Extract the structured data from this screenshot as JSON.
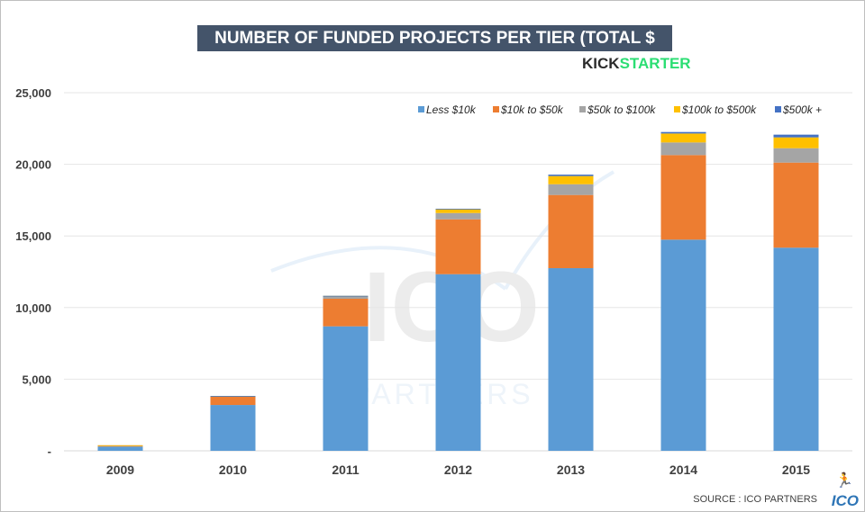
{
  "chart_data": {
    "type": "bar",
    "stacked": true,
    "title": "NUMBER OF FUNDED PROJECTS PER TIER (TOTAL $ RAISED)",
    "categories": [
      "2009",
      "2010",
      "2011",
      "2012",
      "2013",
      "2014",
      "2015"
    ],
    "series": [
      {
        "name": "Less $10k",
        "color": "#5b9bd5",
        "values": [
          300,
          3200,
          8690,
          12330,
          12750,
          14740,
          14180
        ]
      },
      {
        "name": "$10k to $50k",
        "color": "#ed7d31",
        "values": [
          80,
          600,
          1925,
          3830,
          5110,
          5905,
          5940
        ]
      },
      {
        "name": "$50k to $100k",
        "color": "#a5a5a5",
        "values": [
          5,
          20,
          170,
          440,
          750,
          880,
          1005
        ]
      },
      {
        "name": "$100k to $500k",
        "color": "#ffc000",
        "values": [
          2,
          10,
          30,
          280,
          570,
          625,
          755
        ]
      },
      {
        "name": "$500k +",
        "color": "#4472c4",
        "values": [
          0,
          2,
          5,
          20,
          100,
          105,
          190
        ]
      }
    ],
    "ylim": [
      0,
      25000
    ],
    "yticks": [
      0,
      5000,
      10000,
      15000,
      20000,
      25000
    ],
    "ytick_labels": [
      "-",
      "5,000",
      "10,000",
      "15,000",
      "20,000",
      "25,000"
    ],
    "grid": true,
    "legend": "top-right"
  },
  "brand": {
    "part1": "KICK",
    "part2": "STARTER"
  },
  "watermark": {
    "big": "ICO",
    "small": "PARTNERS"
  },
  "footer": {
    "source": "SOURCE : ICO PARTNERS",
    "logo": "ICO",
    "runner": "🏃"
  }
}
